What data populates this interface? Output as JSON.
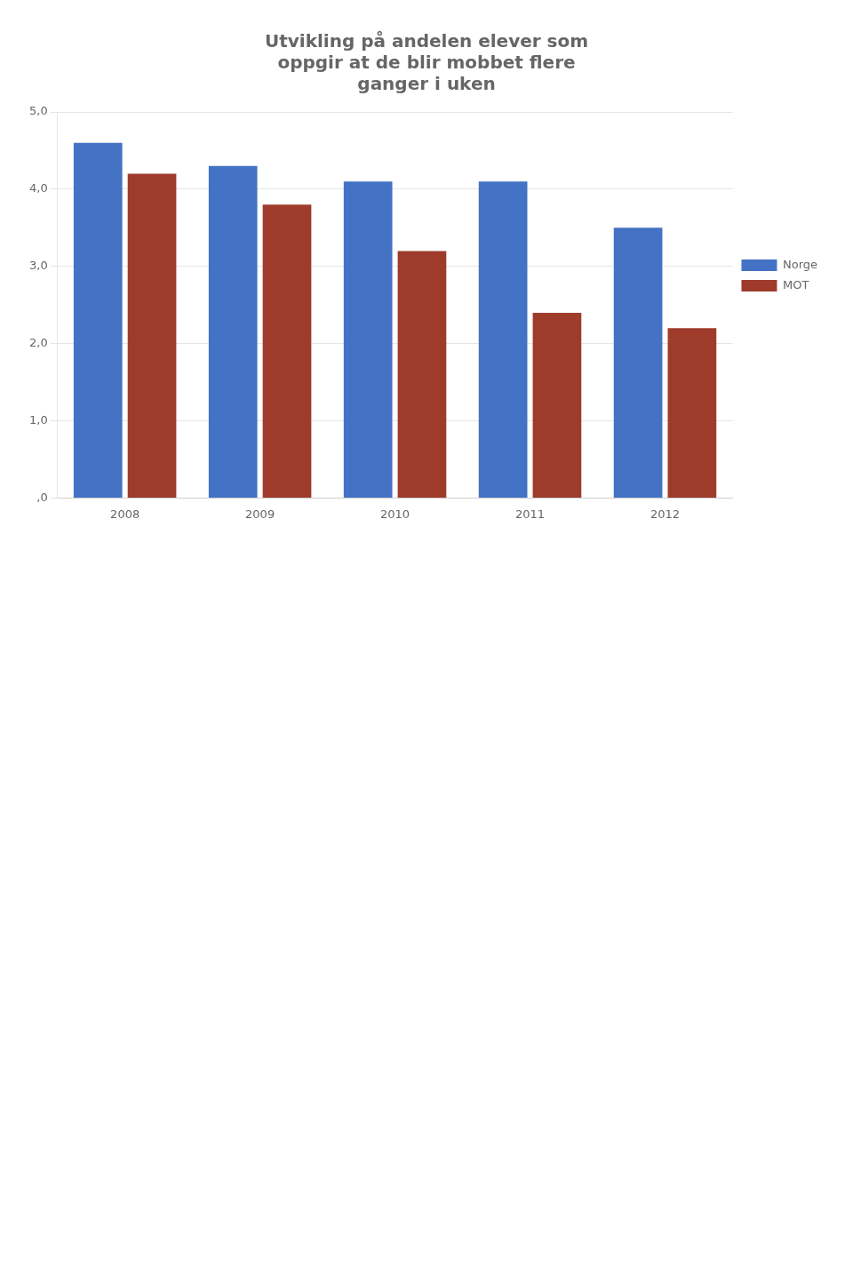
{
  "chart_data": {
    "type": "bar",
    "title": "Utvikling på andelen elever som\noppgir at de blir mobbet flere\nganger i uken",
    "categories": [
      "2008",
      "2009",
      "2010",
      "2011",
      "2012"
    ],
    "series": [
      {
        "name": "Norge",
        "color": "#4472C4",
        "values": [
          4.6,
          4.3,
          4.1,
          4.1,
          3.5
        ]
      },
      {
        "name": "MOT",
        "color": "#9E3B2B",
        "values": [
          4.2,
          3.8,
          3.2,
          2.4,
          2.2
        ]
      }
    ],
    "ylim": [
      0,
      5.0
    ],
    "yticks": [
      {
        "value": 0,
        "label": ",0"
      },
      {
        "value": 1.0,
        "label": "1,0"
      },
      {
        "value": 2.0,
        "label": "2,0"
      },
      {
        "value": 3.0,
        "label": "3,0"
      },
      {
        "value": 4.0,
        "label": "4,0"
      },
      {
        "value": 5.0,
        "label": "5,0"
      }
    ],
    "grid": true,
    "legend": "right"
  }
}
